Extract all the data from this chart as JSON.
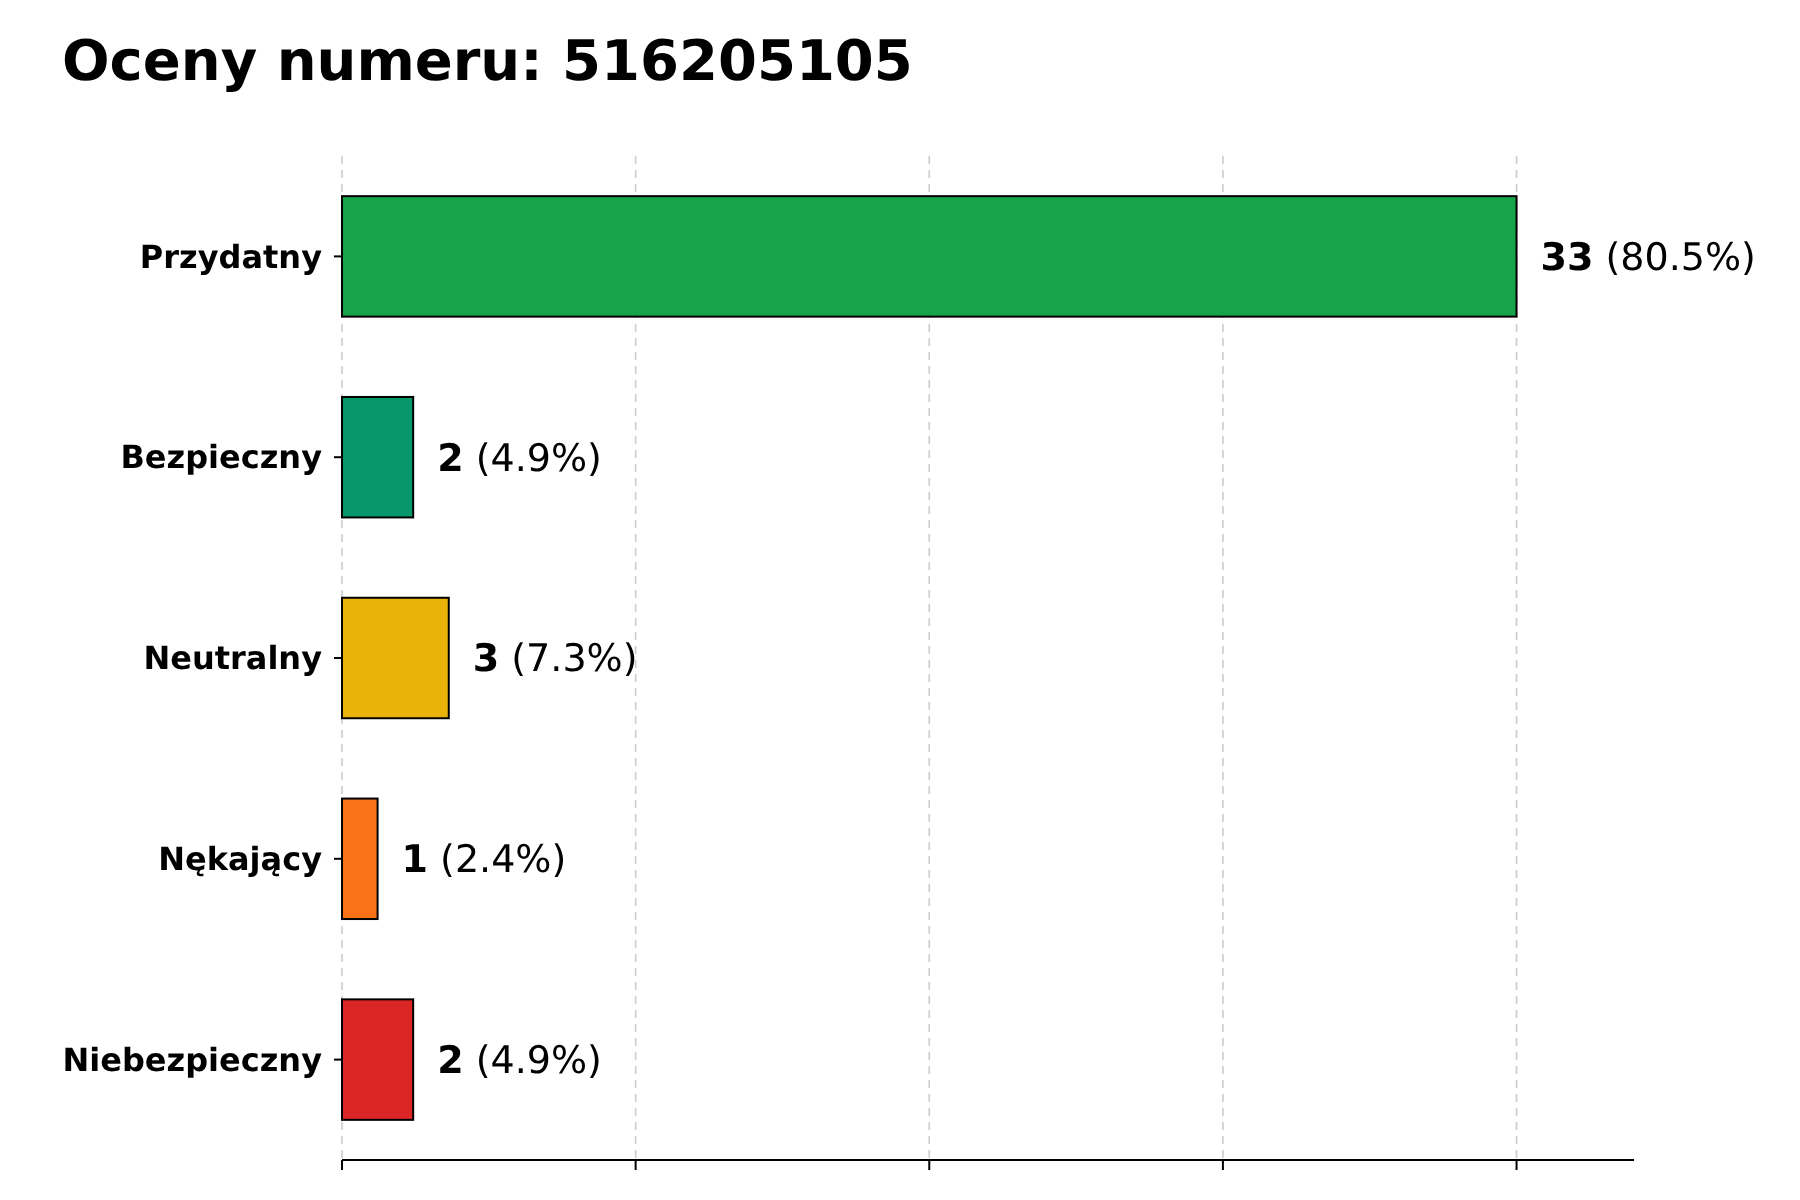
{
  "chart_data": {
    "type": "bar",
    "title": "Oceny numeru: 516205105",
    "orientation": "horizontal",
    "categories": [
      "Przydatny",
      "Bezpieczny",
      "Neutralny",
      "Nękający",
      "Niebezpieczny"
    ],
    "values": [
      33,
      2,
      3,
      1,
      2
    ],
    "colors": [
      "#17a34a",
      "#059669",
      "#eab308",
      "#f97316",
      "#dc2626"
    ],
    "value_labels": [
      "33 (80.5%)",
      "2 (4.9%)",
      "3 (7.3%)",
      "1 (2.4%)",
      "2 (4.9%)"
    ],
    "xlim": [
      0,
      36.3
    ],
    "xticks": [
      {
        "value": 0,
        "label": null
      },
      {
        "value": 8.25,
        "label": null
      },
      {
        "value": 16.5,
        "label": null
      },
      {
        "value": 24.75,
        "label": null
      },
      {
        "value": 33,
        "label": null
      }
    ],
    "tick_labels": "y",
    "grid": "x"
  }
}
